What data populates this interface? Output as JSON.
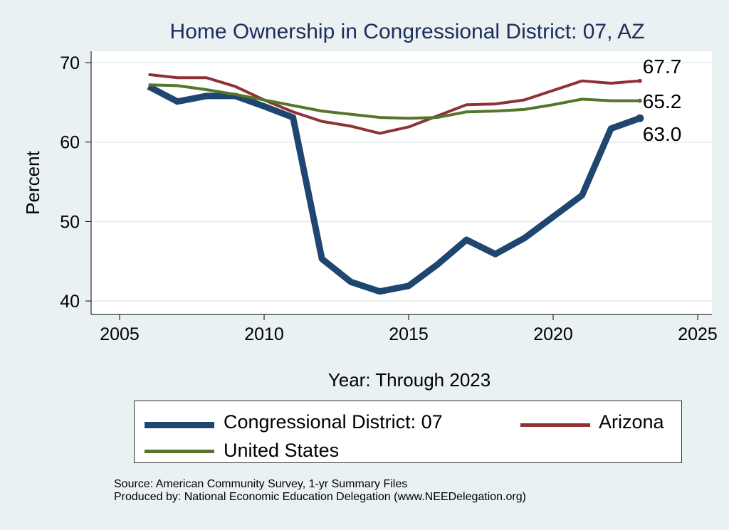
{
  "chart_data": {
    "type": "line",
    "title": "Home Ownership in Congressional District:  07, AZ",
    "xlabel": "Year: Through 2023",
    "ylabel": "Percent",
    "xlim": [
      2005,
      2025
    ],
    "ylim": [
      39.5,
      71.5
    ],
    "xticks": [
      2005,
      2010,
      2015,
      2020,
      2025
    ],
    "yticks": [
      40,
      50,
      60,
      70
    ],
    "grid": true,
    "x": [
      2006,
      2007,
      2008,
      2009,
      2010,
      2011,
      2012,
      2013,
      2014,
      2015,
      2016,
      2017,
      2018,
      2019,
      2020,
      2021,
      2022,
      2023
    ],
    "series": [
      {
        "name": "Congressional District:  07",
        "color": "#1f4670",
        "end_label": "63.0",
        "values": [
          67.0,
          65.1,
          65.8,
          65.8,
          64.5,
          63.1,
          45.3,
          42.4,
          41.2,
          41.9,
          44.6,
          47.7,
          45.9,
          47.9,
          50.6,
          53.3,
          61.7,
          63.0
        ]
      },
      {
        "name": "Arizona",
        "color": "#8f3236",
        "end_label": "67.7",
        "values": [
          68.5,
          68.1,
          68.1,
          67.0,
          65.3,
          63.8,
          62.6,
          62.0,
          61.1,
          61.9,
          63.3,
          64.7,
          64.8,
          65.3,
          66.5,
          67.7,
          67.4,
          67.7
        ]
      },
      {
        "name": "United States",
        "color": "#55752b",
        "end_label": "65.2",
        "values": [
          67.2,
          67.1,
          66.6,
          66.0,
          65.3,
          64.6,
          63.9,
          63.5,
          63.1,
          63.0,
          63.1,
          63.8,
          63.9,
          64.1,
          64.7,
          65.4,
          65.2,
          65.2
        ]
      }
    ],
    "legend": "bottom",
    "source": "Source: American Community Survey, 1-yr Summary Files",
    "produced_by": "Produced by: National Economic Education Delegation (www.NEEDelegation.org)"
  }
}
